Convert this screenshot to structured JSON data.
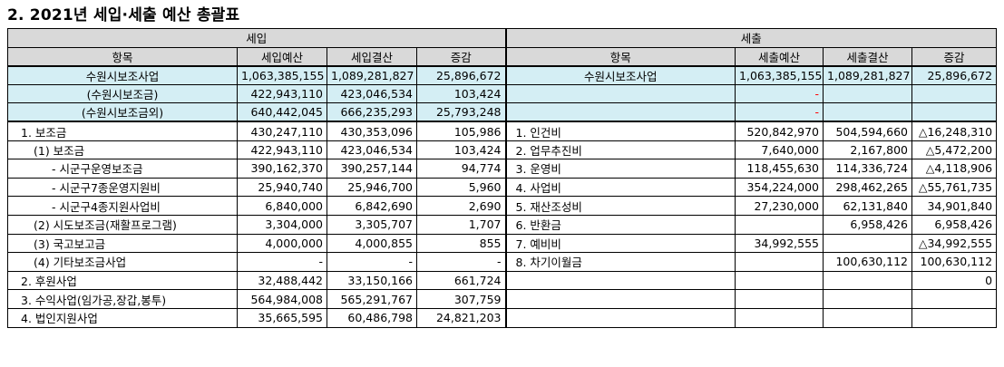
{
  "title": "2. 2021년 세입·세출 예산 총괄표",
  "headers": {
    "income": "세입",
    "expense": "세출",
    "item": "항목",
    "income_budget": "세입예산",
    "income_settlement": "세입결산",
    "change": "증감",
    "expense_budget": "세출예산",
    "expense_settlement": "세출결산"
  },
  "rows": [
    {
      "l_item": "수원시보조사업",
      "l_bud": "1,063,385,155",
      "l_set": "1,089,281,827",
      "l_chg": "25,896,672",
      "r_item": "수원시보조사업",
      "r_bud": "1,063,385,155",
      "r_set": "1,089,281,827",
      "r_chg": "25,896,672"
    },
    {
      "l_item": "(수원시보조금)",
      "l_bud": "422,943,110",
      "l_set": "423,046,534",
      "l_chg": "103,424",
      "r_item": "",
      "r_bud": "-",
      "r_set": "",
      "r_chg": ""
    },
    {
      "l_item": "(수원시보조금외)",
      "l_bud": "640,442,045",
      "l_set": "666,235,293",
      "l_chg": "25,793,248",
      "r_item": "",
      "r_bud": "-",
      "r_set": "",
      "r_chg": ""
    },
    {
      "l_item": "1. 보조금",
      "l_bud": "430,247,110",
      "l_set": "430,353,096",
      "l_chg": "105,986",
      "r_item": "1. 인건비",
      "r_bud": "520,842,970",
      "r_set": "504,594,660",
      "r_chg": "△16,248,310"
    },
    {
      "l_item": "(1) 보조금",
      "l_bud": "422,943,110",
      "l_set": "423,046,534",
      "l_chg": "103,424",
      "r_item": "2. 업무추진비",
      "r_bud": "7,640,000",
      "r_set": "2,167,800",
      "r_chg": "△5,472,200"
    },
    {
      "l_item": "- 시군구운영보조금",
      "l_bud": "390,162,370",
      "l_set": "390,257,144",
      "l_chg": "94,774",
      "r_item": "3. 운영비",
      "r_bud": "118,455,630",
      "r_set": "114,336,724",
      "r_chg": "△4,118,906"
    },
    {
      "l_item": "- 시군구7종운영지원비",
      "l_bud": "25,940,740",
      "l_set": "25,946,700",
      "l_chg": "5,960",
      "r_item": "4. 사업비",
      "r_bud": "354,224,000",
      "r_set": "298,462,265",
      "r_chg": "△55,761,735"
    },
    {
      "l_item": "- 시군구4종지원사업비",
      "l_bud": "6,840,000",
      "l_set": "6,842,690",
      "l_chg": "2,690",
      "r_item": "5. 재산조성비",
      "r_bud": "27,230,000",
      "r_set": "62,131,840",
      "r_chg": "34,901,840"
    },
    {
      "l_item": "(2) 시도보조금(재활프로그램)",
      "l_bud": "3,304,000",
      "l_set": "3,305,707",
      "l_chg": "1,707",
      "r_item": "6. 반환금",
      "r_bud": "",
      "r_set": "6,958,426",
      "r_chg": "6,958,426"
    },
    {
      "l_item": "(3) 국고보고금",
      "l_bud": "4,000,000",
      "l_set": "4,000,855",
      "l_chg": "855",
      "r_item": "7. 예비비",
      "r_bud": "34,992,555",
      "r_set": "",
      "r_chg": "△34,992,555"
    },
    {
      "l_item": "(4) 기타보조금사업",
      "l_bud": "-",
      "l_set": "-",
      "l_chg": "-",
      "r_item": "8. 차기이월금",
      "r_bud": "",
      "r_set": "100,630,112",
      "r_chg": "100,630,112"
    },
    {
      "l_item": "2. 후원사업",
      "l_bud": "32,488,442",
      "l_set": "33,150,166",
      "l_chg": "661,724",
      "r_item": "",
      "r_bud": "",
      "r_set": "",
      "r_chg": "0"
    },
    {
      "l_item": "3. 수익사업(임가공,장갑,봉투)",
      "l_bud": "564,984,008",
      "l_set": "565,291,767",
      "l_chg": "307,759",
      "r_item": "",
      "r_bud": "",
      "r_set": "",
      "r_chg": ""
    },
    {
      "l_item": "4. 법인지원사업",
      "l_bud": "35,665,595",
      "l_set": "60,486,798",
      "l_chg": "24,821,203",
      "r_item": "",
      "r_bud": "",
      "r_set": "",
      "r_chg": ""
    }
  ]
}
